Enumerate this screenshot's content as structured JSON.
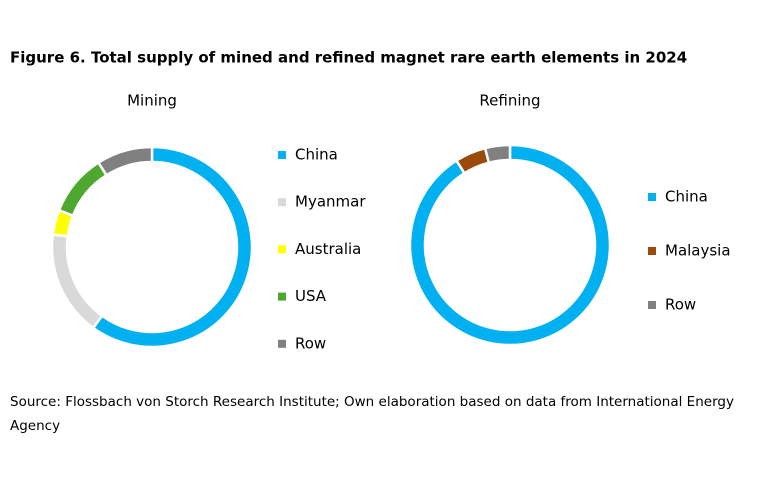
{
  "figure_title": "Figure 6. Total supply of mined and refined magnet rare earth elements in 2024",
  "source": "Source: Flossbach von Storch Research Institute; Own elaboration based on data from International Energy Agency",
  "chart_data": [
    {
      "type": "donut",
      "title": "Mining",
      "categories": [
        "China",
        "Myanmar",
        "Australia",
        "USA",
        "Row"
      ],
      "values": [
        60,
        17,
        4,
        10,
        9
      ],
      "colors": [
        "#00b0f0",
        "#d9d9d9",
        "#ffff00",
        "#4ea72e",
        "#808080"
      ]
    },
    {
      "type": "donut",
      "title": "Refining",
      "categories": [
        "China",
        "Malaysia",
        "Row"
      ],
      "values": [
        91,
        5,
        4
      ],
      "colors": [
        "#00b0f0",
        "#9c4a0a",
        "#808080"
      ]
    }
  ]
}
